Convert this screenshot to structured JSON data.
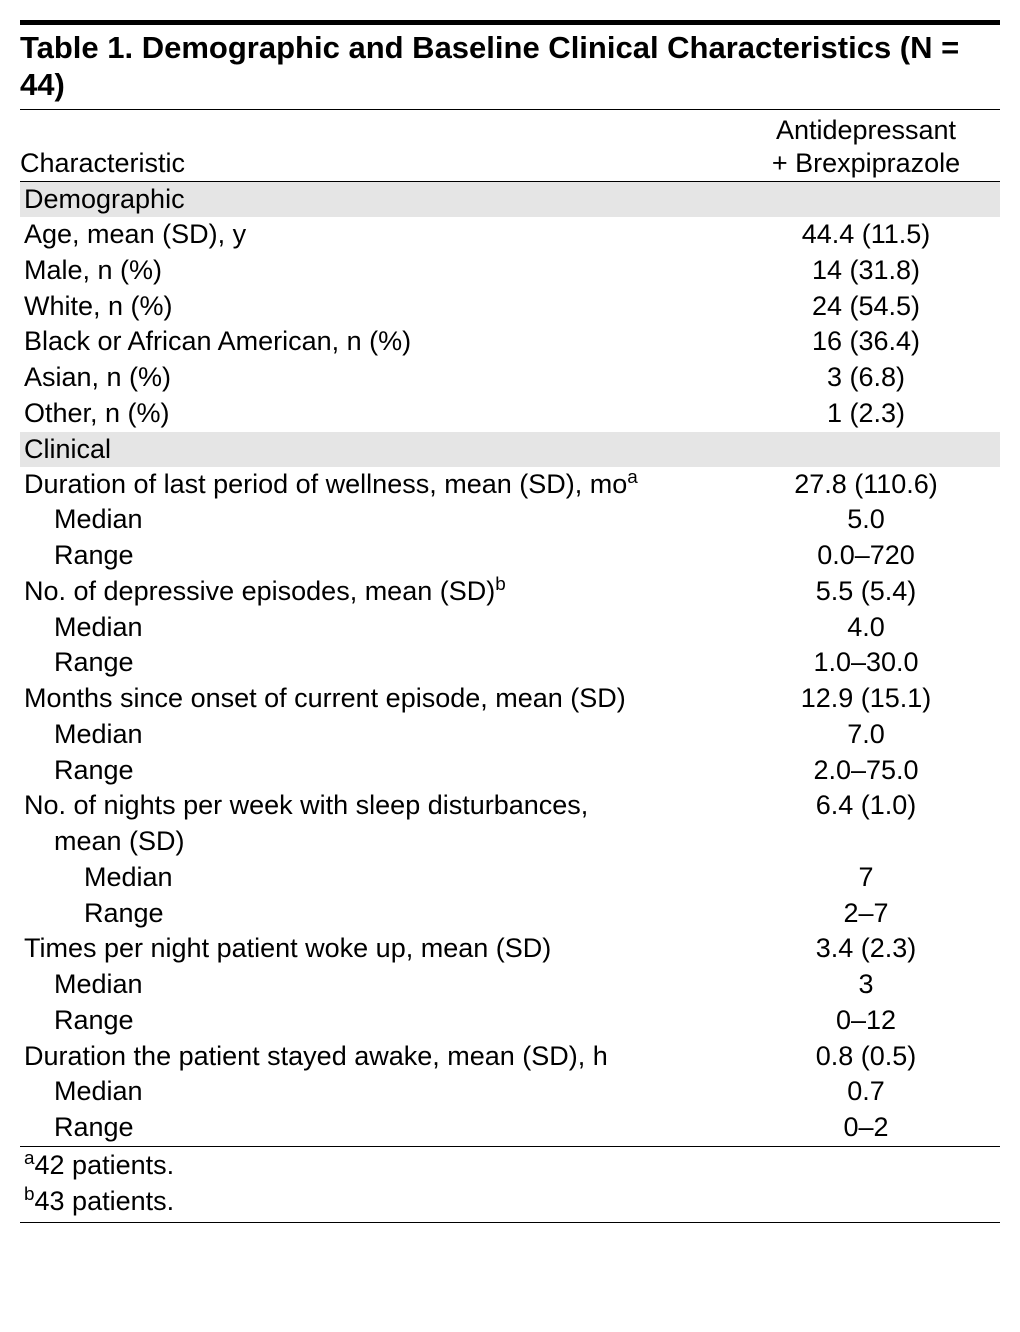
{
  "title": "Table 1. Demographic and Baseline Clinical Characteristics (N = 44)",
  "col_left": "Characteristic",
  "col_right_l1": "Antidepressant",
  "col_right_l2": "+ Brexpiprazole",
  "sec1": "Demographic",
  "r1l": "Age, mean (SD), y",
  "r1v": "44.4 (11.5)",
  "r2l": "Male, n (%)",
  "r2v": "14 (31.8)",
  "r3l": "White, n (%)",
  "r3v": "24 (54.5)",
  "r4l": "Black or African American, n (%)",
  "r4v": "16 (36.4)",
  "r5l": "Asian, n (%)",
  "r5v": "3 (6.8)",
  "r6l": "Other, n (%)",
  "r6v": "1 (2.3)",
  "sec2": "Clinical",
  "c1l_a": "Duration of last period of wellness, mean (SD), mo",
  "c1l_sup": "a",
  "c1v": "27.8 (110.6)",
  "c1ml": "Median",
  "c1mv": "5.0",
  "c1rl": "Range",
  "c1rv": "0.0–720",
  "c2l_a": "No. of depressive episodes, mean (SD)",
  "c2l_sup": "b",
  "c2v": "5.5 (5.4)",
  "c2ml": "Median",
  "c2mv": "4.0",
  "c2rl": "Range",
  "c2rv": "1.0–30.0",
  "c3l": "Months since onset of current episode, mean (SD)",
  "c3v": "12.9 (15.1)",
  "c3ml": "Median",
  "c3mv": "7.0",
  "c3rl": "Range",
  "c3rv": "2.0–75.0",
  "c4l1": "No. of nights per week with sleep disturbances,",
  "c4v": "6.4 (1.0)",
  "c4l2": "mean (SD)",
  "c4ml": "Median",
  "c4mv": "7",
  "c4rl": "Range",
  "c4rv": "2–7",
  "c5l": "Times per night patient woke up, mean (SD)",
  "c5v": "3.4 (2.3)",
  "c5ml": "Median",
  "c5mv": "3",
  "c5rl": "Range",
  "c5rv": "0–12",
  "c6l": "Duration the patient stayed awake, mean (SD), h",
  "c6v": "0.8 (0.5)",
  "c6ml": "Median",
  "c6mv": "0.7",
  "c6rl": "Range",
  "c6rv": "0–2",
  "fn1_sup": "a",
  "fn1": "42 patients.",
  "fn2_sup": "b",
  "fn2": "43 patients."
}
